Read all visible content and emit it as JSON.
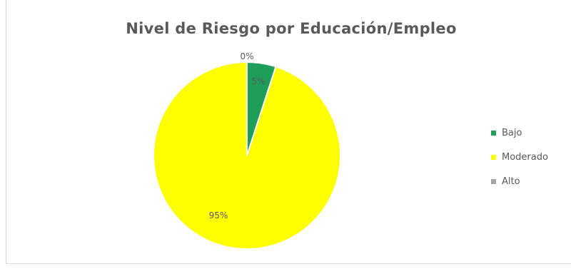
{
  "chart_data": {
    "type": "pie",
    "title": "Nivel de Riesgo por Educación/Empleo",
    "categories": [
      "Bajo",
      "Moderado",
      "Alto"
    ],
    "values": [
      5,
      95,
      0
    ],
    "labels": [
      "5%",
      "95%",
      "0%"
    ],
    "colors": [
      "#1f9e5a",
      "#ffff00",
      "#a5a5a5"
    ],
    "legend_position": "right"
  }
}
